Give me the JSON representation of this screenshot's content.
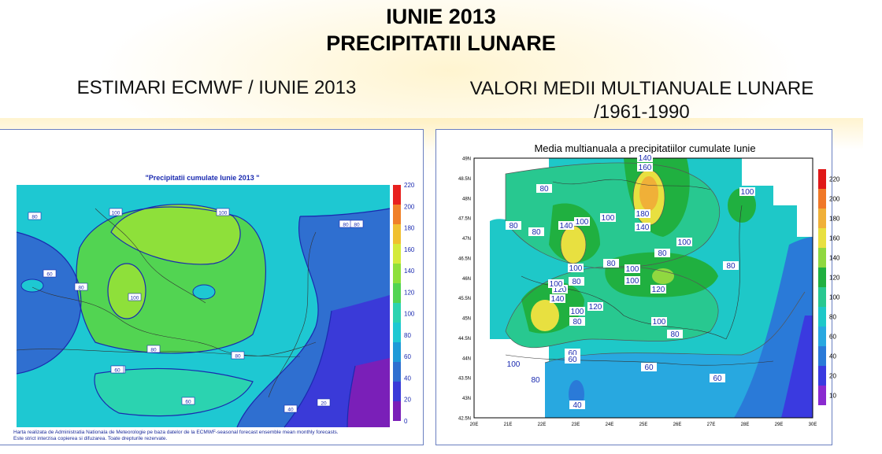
{
  "header": {
    "title_line1": "IUNIE 2013",
    "title_line2": "PRECIPITATII LUNARE"
  },
  "left_panel": {
    "caption": "ESTIMARI ECMWF / IUNIE 2013",
    "map_title": "\"Precipitatii cumulate Iunie 2013 \"",
    "colorbar_labels": [
      "0",
      "20",
      "40",
      "60",
      "80",
      "100",
      "120",
      "140",
      "160",
      "180",
      "200",
      "220"
    ],
    "colors": [
      "#7a1fb8",
      "#3a3ad8",
      "#2f6fd0",
      "#1e9ad8",
      "#1ec8d2",
      "#2bd3b0",
      "#52d452",
      "#8ee03a",
      "#d4ea3a",
      "#f0c030",
      "#f08028",
      "#e8201e"
    ],
    "contour_labels": [
      "80",
      "100",
      "100",
      "60",
      "80",
      "80",
      "100",
      "80",
      "60",
      "80",
      "60",
      "80",
      "60",
      "40",
      "20"
    ],
    "footer_line1": "Harta realizata de Administratia Nationala de Meteorologie pe baza datelor de la ECMWF-seasonal forecast ensemble mean monthly forecasts.",
    "footer_line2": "Este strict interzisa copierea si difuzarea. Toate drepturile rezervate."
  },
  "right_panel": {
    "caption_line1": "VALORI MEDII MULTIANUALE LUNARE",
    "caption_line2": "/1961-1990",
    "map_title": "Media multianuala a precipitatiilor cumulate Iunie",
    "y_ticks": [
      "49N",
      "48.5N",
      "48N",
      "47.5N",
      "47N",
      "46.5N",
      "46N",
      "45.5N",
      "45N",
      "44.5N",
      "44N",
      "43.5N",
      "43N",
      "42.5N"
    ],
    "x_ticks": [
      "20E",
      "21E",
      "22E",
      "23E",
      "24E",
      "25E",
      "26E",
      "27E",
      "28E",
      "29E",
      "30E"
    ],
    "colorbar_labels": [
      "10",
      "20",
      "40",
      "60",
      "80",
      "100",
      "120",
      "140",
      "160",
      "180",
      "200",
      "220"
    ],
    "colors": [
      "#8a2ad0",
      "#3a3ae0",
      "#2a7ad8",
      "#28a8e0",
      "#1ec8c8",
      "#28c890",
      "#20b040",
      "#90d840",
      "#e8e040",
      "#f0b038",
      "#f07828",
      "#e01818"
    ],
    "contour_labels": [
      "140",
      "160",
      "80",
      "100",
      "180",
      "140",
      "80",
      "140",
      "100",
      "100",
      "80",
      "100",
      "80",
      "80",
      "100",
      "100",
      "80",
      "100",
      "120",
      "120",
      "100",
      "80",
      "140",
      "120",
      "100",
      "80",
      "100",
      "80",
      "60",
      "60",
      "100",
      "80",
      "60",
      "60",
      "40"
    ]
  }
}
